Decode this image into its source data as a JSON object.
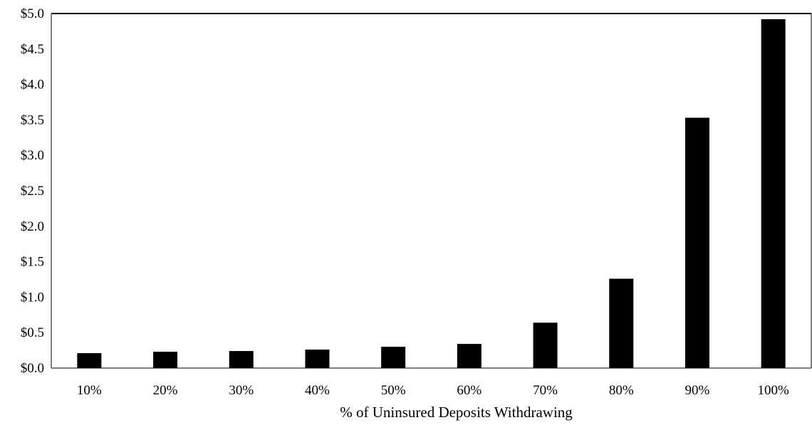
{
  "chart_data": {
    "type": "bar",
    "title": "",
    "xlabel": "% of Uninsured Deposits Withdrawing",
    "ylabel": "",
    "categories": [
      "10%",
      "20%",
      "30%",
      "40%",
      "50%",
      "60%",
      "70%",
      "80%",
      "90%",
      "100%"
    ],
    "values": [
      0.21,
      0.23,
      0.24,
      0.26,
      0.3,
      0.34,
      0.64,
      1.26,
      3.53,
      4.92
    ],
    "ylim": [
      0,
      5.0
    ],
    "yticks": [
      0,
      0.5,
      1.0,
      1.5,
      2.0,
      2.5,
      3.0,
      3.5,
      4.0,
      4.5,
      5.0
    ],
    "ytick_labels": [
      "$0.0",
      "$0.5",
      "$1.0",
      "$1.5",
      "$2.0",
      "$2.5",
      "$3.0",
      "$3.5",
      "$4.0",
      "$4.5",
      "$5.0"
    ],
    "bar_color": "#000000",
    "grid": false,
    "legend": "none"
  }
}
